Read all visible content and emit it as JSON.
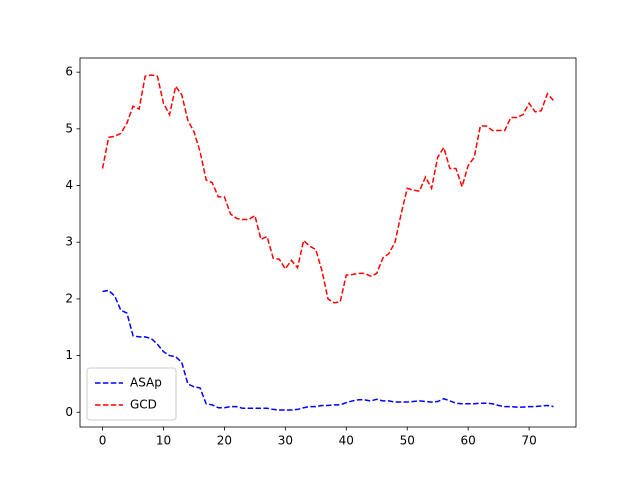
{
  "chart_data": {
    "type": "line",
    "x": [
      0,
      1,
      2,
      3,
      4,
      5,
      6,
      7,
      8,
      9,
      10,
      11,
      12,
      13,
      14,
      15,
      16,
      17,
      18,
      19,
      20,
      21,
      22,
      23,
      24,
      25,
      26,
      27,
      28,
      29,
      30,
      31,
      32,
      33,
      34,
      35,
      36,
      37,
      38,
      39,
      40,
      41,
      42,
      43,
      44,
      45,
      46,
      47,
      48,
      49,
      50,
      51,
      52,
      53,
      54,
      55,
      56,
      57,
      58,
      59,
      60,
      61,
      62,
      63,
      64,
      65,
      66,
      67,
      68,
      69,
      70,
      71,
      72,
      73,
      74
    ],
    "series": [
      {
        "name": "ASAp",
        "color": "#0000ff",
        "values": [
          2.13,
          2.15,
          2.05,
          1.8,
          1.75,
          1.35,
          1.33,
          1.33,
          1.3,
          1.2,
          1.07,
          1.0,
          0.98,
          0.88,
          0.5,
          0.45,
          0.43,
          0.15,
          0.13,
          0.08,
          0.08,
          0.1,
          0.1,
          0.07,
          0.07,
          0.07,
          0.07,
          0.07,
          0.05,
          0.04,
          0.04,
          0.04,
          0.05,
          0.08,
          0.1,
          0.1,
          0.12,
          0.12,
          0.13,
          0.13,
          0.17,
          0.2,
          0.22,
          0.22,
          0.2,
          0.23,
          0.2,
          0.2,
          0.18,
          0.18,
          0.18,
          0.19,
          0.2,
          0.19,
          0.18,
          0.19,
          0.24,
          0.2,
          0.16,
          0.15,
          0.15,
          0.15,
          0.16,
          0.16,
          0.15,
          0.12,
          0.1,
          0.1,
          0.09,
          0.09,
          0.1,
          0.1,
          0.11,
          0.12,
          0.1
        ]
      },
      {
        "name": "GCD",
        "color": "#ff0000",
        "values": [
          4.3,
          4.85,
          4.87,
          4.92,
          5.1,
          5.4,
          5.35,
          5.93,
          5.95,
          5.93,
          5.45,
          5.25,
          5.75,
          5.6,
          5.15,
          4.95,
          4.6,
          4.1,
          4.05,
          3.8,
          3.8,
          3.5,
          3.42,
          3.4,
          3.4,
          3.47,
          3.05,
          3.1,
          2.72,
          2.7,
          2.53,
          2.68,
          2.55,
          3.03,
          2.93,
          2.87,
          2.5,
          2.0,
          1.93,
          1.95,
          2.42,
          2.43,
          2.45,
          2.45,
          2.4,
          2.45,
          2.72,
          2.8,
          3.0,
          3.5,
          3.95,
          3.92,
          3.9,
          4.15,
          3.95,
          4.5,
          4.67,
          4.3,
          4.3,
          3.98,
          4.35,
          4.5,
          5.05,
          5.05,
          4.97,
          4.97,
          4.97,
          5.2,
          5.2,
          5.25,
          5.45,
          5.3,
          5.32,
          5.62,
          5.5
        ]
      }
    ],
    "xlim": [
      -3.7,
      77.7
    ],
    "xticks": [
      0,
      10,
      20,
      30,
      40,
      50,
      60,
      70
    ],
    "ylim": [
      -0.26,
      6.25
    ],
    "yticks": [
      0,
      1,
      2,
      3,
      4,
      5,
      6
    ],
    "line_style": "dashed",
    "legend": "lower left"
  }
}
